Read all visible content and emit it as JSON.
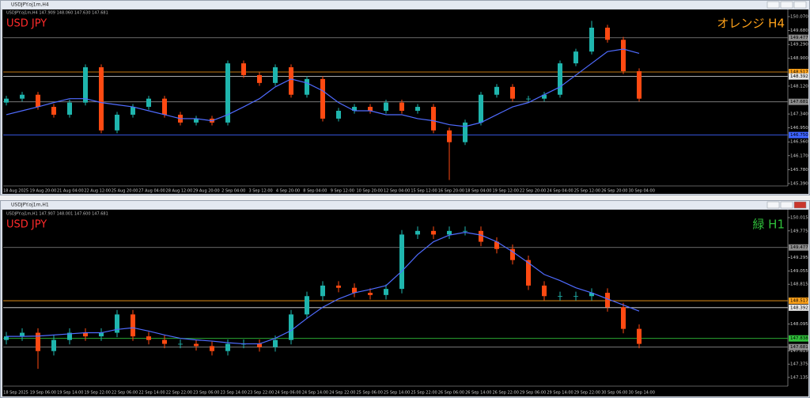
{
  "chart_data": [
    {
      "type": "candlestick",
      "window_title": "USDJPY.oj1m,H4",
      "info": "USDJPY.oj1m,H4  147.909 148.060 147.630 147.681",
      "annotations": [
        {
          "text": "USD JPY",
          "color": "#ff2a2a"
        },
        {
          "text": "オレンジ H4",
          "color": "#ffa21a"
        }
      ],
      "ylim": [
        145.323,
        150.225
      ],
      "yticks": [
        {
          "value": 150.07,
          "label": "150.070"
        },
        {
          "value": 149.68,
          "label": "149.680"
        },
        {
          "value": 149.29,
          "label": "149.290"
        },
        {
          "value": 148.9,
          "label": "148.900"
        },
        {
          "value": 148.12,
          "label": "148.120"
        },
        {
          "value": 147.34,
          "label": "147.340"
        },
        {
          "value": 146.95,
          "label": "146.950"
        },
        {
          "value": 146.56,
          "label": "146.560"
        },
        {
          "value": 146.17,
          "label": "146.170"
        },
        {
          "value": 145.78,
          "label": "145.780"
        },
        {
          "value": 145.39,
          "label": "145.390"
        }
      ],
      "levels": [
        {
          "value": 149.477,
          "color": "#8a8a8a"
        },
        {
          "value": 148.517,
          "color": "#ffa21a"
        },
        {
          "value": 148.392,
          "color": "#e6e6e6"
        },
        {
          "value": 147.681,
          "color": "#8a8a8a"
        },
        {
          "value": 146.75,
          "label": "146.750",
          "color": "#3d63ff"
        }
      ],
      "x_labels": [
        "18 Aug 2025",
        "19 Aug 20:00",
        "21 Aug 04:00",
        "22 Aug 12:00",
        "25 Aug 20:00",
        "27 Aug 04:00",
        "28 Aug 12:00",
        "29 Aug 20:00",
        "2 Sep 04:00",
        "3 Sep 12:00",
        "4 Sep 20:00",
        "8 Sep 04:00",
        "9 Sep 12:00",
        "10 Sep 20:00",
        "12 Sep 04:00",
        "15 Sep 12:00",
        "16 Sep 20:00",
        "18 Sep 04:00",
        "19 Sep 12:00",
        "22 Sep 20:00",
        "24 Sep 04:00",
        "25 Sep 12:00",
        "26 Sep 20:00",
        "30 Sep 04:00"
      ],
      "up_color": "#1fb5ad",
      "down_color": "#ff4a12",
      "open": [
        147.66,
        147.77,
        147.88,
        147.54,
        147.32,
        147.66,
        148.65,
        146.88,
        147.32,
        147.54,
        147.77,
        147.32,
        147.1,
        147.21,
        147.1,
        148.76,
        148.43,
        148.21,
        148.65,
        147.88,
        148.32,
        147.21,
        147.43,
        147.54,
        147.43,
        147.66,
        147.43,
        147.54,
        146.88,
        146.55,
        147.1,
        147.88,
        148.1,
        147.77,
        147.77,
        147.88,
        148.76,
        149.09,
        149.76,
        149.42,
        148.54
      ],
      "high": [
        147.85,
        147.96,
        147.96,
        147.62,
        147.74,
        148.73,
        148.73,
        147.4,
        147.62,
        147.85,
        147.85,
        147.4,
        147.29,
        147.29,
        148.84,
        148.84,
        148.51,
        148.73,
        148.73,
        148.4,
        148.4,
        147.51,
        147.62,
        147.62,
        147.74,
        147.74,
        147.62,
        147.62,
        146.96,
        147.18,
        147.96,
        148.18,
        148.18,
        147.85,
        147.96,
        148.84,
        149.17,
        149.95,
        149.84,
        149.5,
        148.62
      ],
      "low": [
        147.58,
        147.69,
        147.46,
        147.24,
        147.24,
        147.58,
        146.8,
        146.8,
        147.24,
        147.46,
        147.24,
        147.02,
        147.02,
        147.02,
        147.02,
        148.35,
        148.13,
        148.13,
        147.8,
        147.8,
        147.13,
        147.13,
        147.35,
        147.35,
        147.35,
        147.35,
        147.35,
        146.8,
        145.49,
        146.47,
        147.02,
        147.8,
        147.69,
        147.69,
        147.69,
        147.8,
        148.68,
        149.01,
        149.34,
        148.46,
        147.69
      ],
      "close": [
        147.77,
        147.88,
        147.54,
        147.32,
        147.66,
        148.65,
        146.88,
        147.32,
        147.54,
        147.77,
        147.32,
        147.1,
        147.21,
        147.1,
        148.76,
        148.43,
        148.21,
        148.65,
        147.88,
        148.32,
        147.21,
        147.43,
        147.54,
        147.43,
        147.66,
        147.43,
        147.54,
        146.88,
        146.55,
        147.1,
        147.88,
        148.1,
        147.77,
        147.77,
        147.88,
        148.76,
        149.09,
        149.76,
        149.42,
        148.54,
        147.77
      ],
      "ma": {
        "color": "#4f6bff",
        "values": [
          147.32,
          147.43,
          147.54,
          147.66,
          147.77,
          147.77,
          147.66,
          147.6,
          147.54,
          147.43,
          147.32,
          147.21,
          147.21,
          147.15,
          147.32,
          147.54,
          147.77,
          148.1,
          148.32,
          148.21,
          147.99,
          147.66,
          147.43,
          147.43,
          147.32,
          147.32,
          147.21,
          147.15,
          147.04,
          146.99,
          147.1,
          147.32,
          147.54,
          147.66,
          147.88,
          148.1,
          148.43,
          148.76,
          149.09,
          149.16,
          149.04
        ]
      }
    },
    {
      "type": "candlestick",
      "window_title": "USDJPY.oj1m,H1",
      "info": "USDJPY.oj1m,H1  147.907 148.001 147.600 147.681",
      "annotations": [
        {
          "text": "USD JPY",
          "color": "#ff2a2a"
        },
        {
          "text": "緑 H1",
          "color": "#2fbf3a"
        }
      ],
      "ylim": [
        146.978,
        150.115
      ],
      "yticks": [
        150.015,
        149.775,
        149.295,
        149.055,
        148.815,
        148.095,
        147.615,
        147.375,
        147.135
      ],
      "levels": [
        {
          "value": 149.477,
          "color": "#8a8a8a"
        },
        {
          "value": 148.517,
          "color": "#ffa21a"
        },
        {
          "value": 148.392,
          "color": "#e6e6e6"
        },
        {
          "value": 147.838,
          "color": "#2fbf3a"
        },
        {
          "value": 147.681,
          "color": "#8a8a8a"
        }
      ],
      "x_labels": [
        "18 Sep 2025",
        "19 Sep 06:00",
        "19 Sep 14:00",
        "19 Sep 22:00",
        "22 Sep 06:00",
        "22 Sep 14:00",
        "22 Sep 22:00",
        "23 Sep 06:00",
        "23 Sep 14:00",
        "23 Sep 22:00",
        "24 Sep 06:00",
        "24 Sep 14:00",
        "24 Sep 22:00",
        "25 Sep 06:00",
        "25 Sep 14:00",
        "25 Sep 22:00",
        "26 Sep 06:00",
        "26 Sep 14:00",
        "26 Sep 22:00",
        "29 Sep 06:00",
        "29 Sep 14:00",
        "29 Sep 22:00",
        "30 Sep 06:00",
        "30 Sep 14:00"
      ],
      "up_color": "#1fb5ad",
      "down_color": "#ff4a12",
      "open": [
        147.81,
        147.875,
        147.94,
        147.61,
        147.81,
        147.94,
        147.875,
        147.94,
        148.27,
        147.875,
        147.81,
        147.74,
        147.74,
        147.7,
        147.61,
        147.74,
        147.74,
        147.68,
        147.81,
        148.27,
        148.6,
        148.79,
        148.75,
        148.66,
        148.62,
        148.73,
        149.71,
        149.775,
        149.71,
        149.775,
        149.775,
        149.58,
        149.45,
        149.25,
        148.79,
        148.6,
        148.6,
        148.6,
        148.66,
        148.4,
        148.01
      ],
      "high": [
        147.955,
        148.02,
        148.02,
        147.89,
        148.02,
        148.02,
        148.02,
        148.35,
        148.35,
        147.955,
        147.89,
        147.82,
        147.82,
        147.78,
        147.82,
        147.82,
        147.82,
        147.89,
        148.35,
        148.68,
        148.87,
        148.87,
        148.83,
        148.74,
        148.81,
        149.79,
        149.855,
        149.855,
        149.855,
        149.855,
        149.855,
        149.66,
        149.53,
        149.33,
        148.87,
        148.68,
        148.68,
        148.74,
        148.74,
        148.48,
        148.09
      ],
      "low": [
        147.73,
        147.795,
        147.29,
        147.53,
        147.73,
        147.795,
        147.795,
        147.86,
        147.795,
        147.73,
        147.66,
        147.66,
        147.62,
        147.53,
        147.53,
        147.66,
        147.6,
        147.6,
        147.73,
        148.19,
        148.52,
        148.67,
        148.58,
        148.54,
        148.54,
        148.65,
        149.63,
        149.63,
        149.63,
        149.695,
        149.5,
        149.37,
        149.17,
        148.71,
        148.52,
        148.52,
        148.52,
        148.52,
        148.32,
        147.93,
        147.66
      ],
      "close": [
        147.875,
        147.94,
        147.61,
        147.81,
        147.94,
        147.875,
        147.94,
        148.27,
        147.875,
        147.81,
        147.74,
        147.74,
        147.7,
        147.61,
        147.74,
        147.74,
        147.68,
        147.81,
        148.27,
        148.6,
        148.79,
        148.75,
        148.66,
        148.62,
        148.73,
        149.71,
        149.775,
        149.71,
        149.775,
        149.775,
        149.58,
        149.45,
        149.25,
        148.79,
        148.6,
        148.6,
        148.6,
        148.66,
        148.4,
        148.01,
        147.74
      ],
      "ma": {
        "color": "#4f6bff",
        "values": [
          147.875,
          147.875,
          147.88,
          147.9,
          147.92,
          147.94,
          147.94,
          148.0,
          148.03,
          147.97,
          147.9,
          147.84,
          147.81,
          147.79,
          147.76,
          147.74,
          147.74,
          147.84,
          147.98,
          148.2,
          148.4,
          148.55,
          148.66,
          148.72,
          148.79,
          149.05,
          149.35,
          149.58,
          149.7,
          149.75,
          149.7,
          149.58,
          149.4,
          149.2,
          148.99,
          148.88,
          148.75,
          148.66,
          148.55,
          148.44,
          148.33
        ]
      }
    }
  ]
}
